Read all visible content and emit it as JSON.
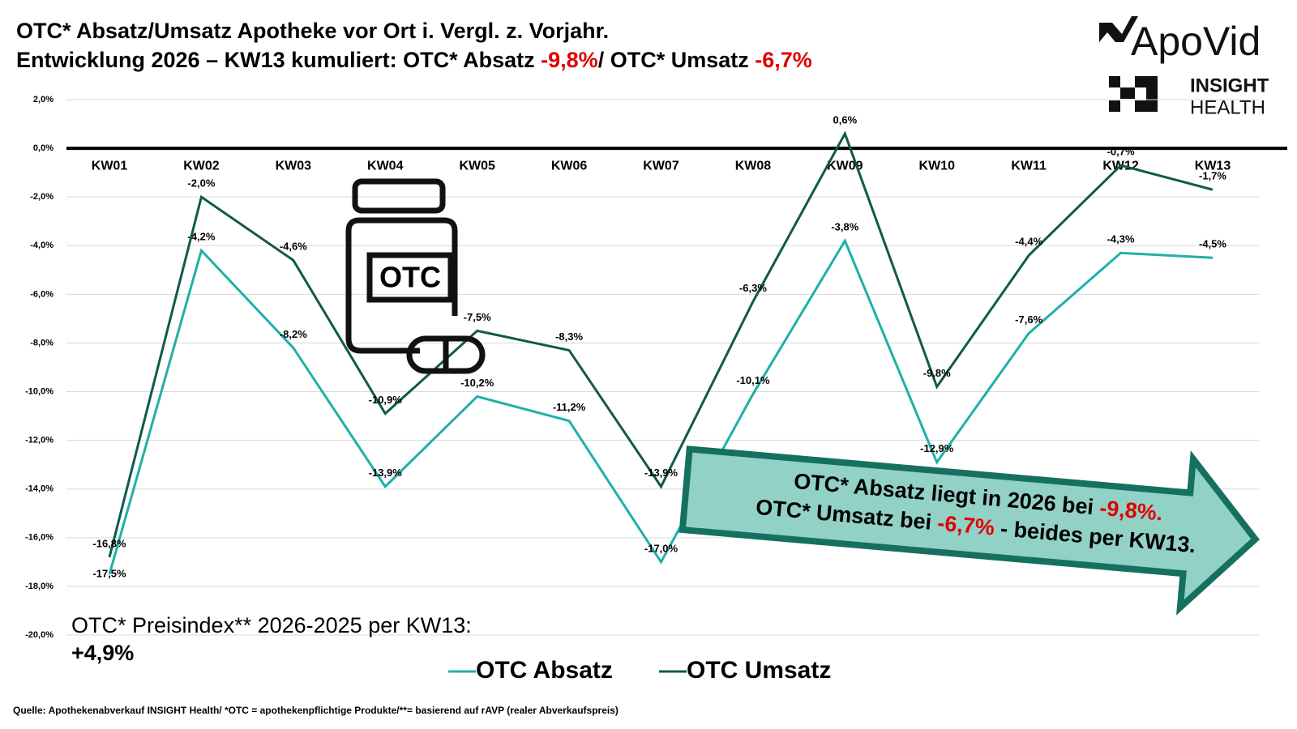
{
  "chart_data": {
    "type": "line",
    "title": [
      "OTC* Absatz/Umsatz Apotheke vor Ort i. Vergl. z. Vorjahr.",
      "Entwicklung 2026 – KW13 kumuliert: OTC* Absatz ",
      "-9,8%",
      "/ OTC* Umsatz ",
      "-6,7%"
    ],
    "categories": [
      "KW01",
      "KW02",
      "KW03",
      "KW04",
      "KW05",
      "KW06",
      "KW07",
      "KW08",
      "KW09",
      "KW10",
      "KW11",
      "KW12",
      "KW13"
    ],
    "series": [
      {
        "name": "OTC Absatz",
        "color": "#1fb0a8",
        "values": [
          -17.5,
          -4.2,
          -8.2,
          -13.9,
          -10.2,
          -11.2,
          -17.0,
          -10.1,
          -3.8,
          -12.9,
          -7.6,
          -4.3,
          -4.5
        ],
        "value_labels": [
          "-17,5%",
          "-4,2%",
          "-8,2%",
          "-13,9%",
          "-10,2%",
          "-11,2%",
          "-17,0%",
          "-10,1%",
          "-3,8%",
          "-12,9%",
          "-7,6%",
          "-4,3%",
          "-4,5%"
        ]
      },
      {
        "name": "OTC Umsatz",
        "color": "#0f5a4c",
        "values": [
          -16.8,
          -2.0,
          -4.6,
          -10.9,
          -7.5,
          -8.3,
          -13.9,
          -6.3,
          0.6,
          -9.8,
          -4.4,
          -0.7,
          -1.7
        ],
        "value_labels": [
          "-16,8%",
          "-2,0%",
          "-4,6%",
          "-10,9%",
          "-7,5%",
          "-8,3%",
          "-13,9%",
          "-6,3%",
          "0,6%",
          "-9,8%",
          "-4,4%",
          "-0,7%",
          "-1,7%"
        ]
      }
    ],
    "ylim": [
      -20,
      2
    ],
    "yticks": [
      {
        "value": 2,
        "label": "2,0%"
      },
      {
        "value": 0,
        "label": "0,0%"
      },
      {
        "value": -2,
        "label": "-2,0%"
      },
      {
        "value": -4,
        "label": "-4,0%"
      },
      {
        "value": -6,
        "label": "-6,0%"
      },
      {
        "value": -8,
        "label": "-8,0%"
      },
      {
        "value": -10,
        "label": "-10,0%"
      },
      {
        "value": -12,
        "label": "-12,0%"
      },
      {
        "value": -14,
        "label": "-14,0%"
      },
      {
        "value": -16,
        "label": "-16,0%"
      },
      {
        "value": -18,
        "label": "-18,0%"
      },
      {
        "value": -20,
        "label": "-20,0%"
      }
    ],
    "grid": true,
    "annotations": {
      "arrow_text": [
        "OTC* Absatz liegt in 2026 bei ",
        "-9,8%.",
        "OTC* Umsatz bei ",
        "-6,7%",
        " - beides per KW13."
      ],
      "price_index": [
        "OTC* Preisindex** 2026-2025 per KW13:",
        "+4,9%"
      ],
      "icon_label": "OTC",
      "source": "Quelle: Apothekenabverkauf INSIGHT Health/ *OTC = apothekenpflichtige Produkte/**= basierend auf rAVP (realer Abverkaufspreis)"
    },
    "logos": [
      "ApoVid",
      "INSIGHT",
      "HEALTH"
    ]
  }
}
